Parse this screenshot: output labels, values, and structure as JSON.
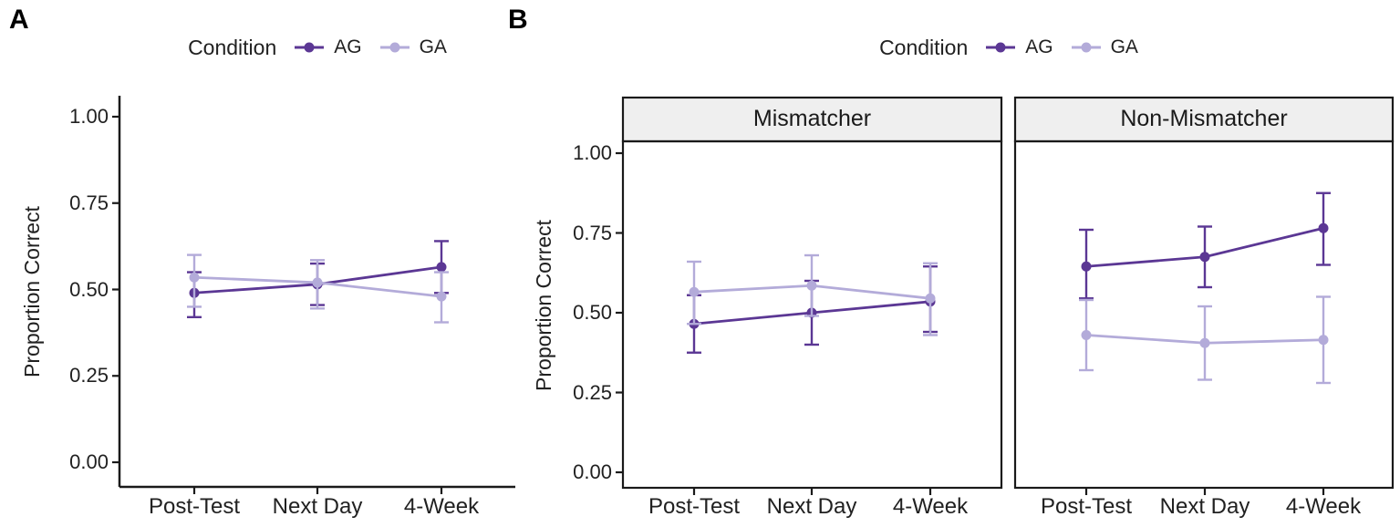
{
  "figure": {
    "panels": {
      "a_label": "A",
      "b_label": "B"
    },
    "legend": {
      "title": "Condition",
      "items": [
        {
          "label": "AG",
          "color": "#5b3794"
        },
        {
          "label": "GA",
          "color": "#b3abd9"
        }
      ]
    },
    "axes": {
      "ylabel": "Proportion Correct",
      "y_tick_labels": [
        "1.00",
        "0.75",
        "0.50",
        "0.25",
        "0.00"
      ],
      "y_tick_values": [
        1.0,
        0.75,
        0.5,
        0.25,
        0.0
      ],
      "x_tick_labels": [
        "Post-Test",
        "Next Day",
        "4-Week"
      ]
    },
    "facets": [
      "Mismatcher",
      "Non-Mismatcher"
    ],
    "colors": {
      "axis": "#1a1a1a",
      "strip_fill": "#efefef",
      "text": "#212121"
    }
  },
  "chart_data": [
    {
      "id": "panel-A",
      "type": "line",
      "title": "",
      "x": [
        "Post-Test",
        "Next Day",
        "4-Week"
      ],
      "xlabel": "",
      "ylabel": "Proportion Correct",
      "ylim": [
        0,
        1
      ],
      "yticks": [
        0,
        0.25,
        0.5,
        0.75,
        1.0
      ],
      "legend_position": "top",
      "error_bars": true,
      "series": [
        {
          "name": "AG",
          "color": "#5b3794",
          "means": [
            0.49,
            0.515,
            0.565
          ],
          "ci_low": [
            0.42,
            0.455,
            0.49
          ],
          "ci_high": [
            0.55,
            0.575,
            0.64
          ]
        },
        {
          "name": "GA",
          "color": "#b3abd9",
          "means": [
            0.535,
            0.52,
            0.48
          ],
          "ci_low": [
            0.45,
            0.445,
            0.405
          ],
          "ci_high": [
            0.6,
            0.585,
            0.55
          ]
        }
      ]
    },
    {
      "id": "panel-B-facet-1",
      "type": "line",
      "facet_label": "Mismatcher",
      "x": [
        "Post-Test",
        "Next Day",
        "4-Week"
      ],
      "xlabel": "",
      "ylabel": "Proportion Correct",
      "ylim": [
        0,
        1
      ],
      "yticks": [
        0,
        0.25,
        0.5,
        0.75,
        1.0
      ],
      "legend_position": "top",
      "error_bars": true,
      "series": [
        {
          "name": "AG",
          "color": "#5b3794",
          "means": [
            0.465,
            0.5,
            0.535
          ],
          "ci_low": [
            0.375,
            0.4,
            0.44
          ],
          "ci_high": [
            0.555,
            0.6,
            0.645
          ]
        },
        {
          "name": "GA",
          "color": "#b3abd9",
          "means": [
            0.565,
            0.585,
            0.545
          ],
          "ci_low": [
            0.465,
            0.49,
            0.43
          ],
          "ci_high": [
            0.66,
            0.68,
            0.655
          ]
        }
      ]
    },
    {
      "id": "panel-B-facet-2",
      "type": "line",
      "facet_label": "Non-Mismatcher",
      "x": [
        "Post-Test",
        "Next Day",
        "4-Week"
      ],
      "xlabel": "",
      "ylabel": "Proportion Correct",
      "ylim": [
        0,
        1
      ],
      "yticks": [
        0,
        0.25,
        0.5,
        0.75,
        1.0
      ],
      "legend_position": "top",
      "error_bars": true,
      "series": [
        {
          "name": "AG",
          "color": "#5b3794",
          "means": [
            0.645,
            0.675,
            0.765
          ],
          "ci_low": [
            0.545,
            0.58,
            0.65
          ],
          "ci_high": [
            0.76,
            0.77,
            0.875
          ]
        },
        {
          "name": "GA",
          "color": "#b3abd9",
          "means": [
            0.43,
            0.405,
            0.415
          ],
          "ci_low": [
            0.32,
            0.29,
            0.28
          ],
          "ci_high": [
            0.54,
            0.52,
            0.55
          ]
        }
      ]
    }
  ]
}
